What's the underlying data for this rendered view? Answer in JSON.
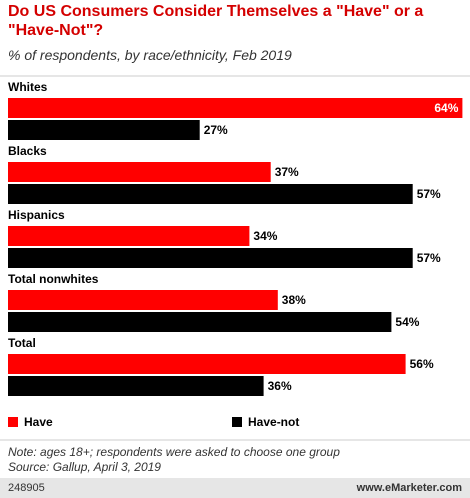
{
  "chart_data": {
    "type": "hbar",
    "title": "Do US Consumers Consider Themselves a \"Have\" or a \"Have-Not\"?",
    "subtitle": "% of respondents, by race/ethnicity, Feb 2019",
    "categories": [
      "Whites",
      "Blacks",
      "Hispanics",
      "Total nonwhites",
      "Total"
    ],
    "series": [
      {
        "name": "Have",
        "color": "#ff0000",
        "values": [
          64,
          37,
          34,
          38,
          56
        ],
        "value_labels": [
          "64%",
          "37%",
          "34%",
          "38%",
          "56%"
        ]
      },
      {
        "name": "Have-not",
        "color": "#000000",
        "values": [
          27,
          57,
          57,
          54,
          36
        ],
        "value_labels": [
          "27%",
          "57%",
          "57%",
          "54%",
          "36%"
        ]
      }
    ],
    "note": "Note: ages 18+; respondents were asked to choose one group",
    "source": "Source: Gallup, April 3, 2019",
    "chart_id": "248905",
    "brand": "www.eMarketer.com"
  }
}
